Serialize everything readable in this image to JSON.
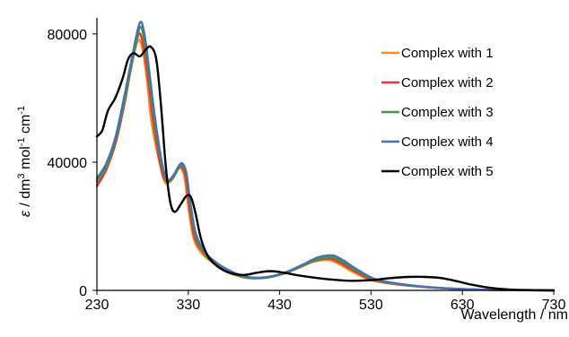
{
  "chart_data": {
    "type": "line",
    "xlabel": "Wavelength / nm",
    "ylabel_symbol": "ε",
    "ylabel_text": " / dm",
    "ylabel_sup1": "3",
    "ylabel_mid": " mol",
    "ylabel_sup2": "-1",
    "ylabel_end": " cm",
    "ylabel_sup3": "-1",
    "xlim": [
      230,
      730
    ],
    "ylim": [
      0,
      85000
    ],
    "x_ticks": [
      230,
      330,
      430,
      530,
      630,
      730
    ],
    "x_tick_labels": [
      "230",
      "330",
      "430",
      "530",
      "630",
      "730"
    ],
    "y_ticks": [
      0,
      40000,
      80000
    ],
    "y_tick_labels": [
      "0",
      "40000",
      "80000"
    ],
    "grid": false,
    "legend_position": "right",
    "series": [
      {
        "name": "Complex with 1",
        "color": "#f28c28",
        "points": [
          [
            230,
            33000
          ],
          [
            240,
            38000
          ],
          [
            250,
            46000
          ],
          [
            260,
            58000
          ],
          [
            268,
            70000
          ],
          [
            275,
            78000
          ],
          [
            280,
            75000
          ],
          [
            285,
            65000
          ],
          [
            290,
            52000
          ],
          [
            300,
            38000
          ],
          [
            305,
            33500
          ],
          [
            312,
            34500
          ],
          [
            318,
            37500
          ],
          [
            322,
            38000
          ],
          [
            326,
            35000
          ],
          [
            330,
            26000
          ],
          [
            336,
            16000
          ],
          [
            345,
            11500
          ],
          [
            355,
            9000
          ],
          [
            370,
            6000
          ],
          [
            390,
            4200
          ],
          [
            410,
            4000
          ],
          [
            430,
            5000
          ],
          [
            450,
            7000
          ],
          [
            465,
            8800
          ],
          [
            478,
            9500
          ],
          [
            485,
            9400
          ],
          [
            495,
            8200
          ],
          [
            510,
            5800
          ],
          [
            530,
            3200
          ],
          [
            560,
            1800
          ],
          [
            600,
            800
          ],
          [
            640,
            300
          ],
          [
            680,
            100
          ],
          [
            730,
            0
          ]
        ]
      },
      {
        "name": "Complex with 2",
        "color": "#e8372c",
        "points": [
          [
            230,
            32500
          ],
          [
            240,
            37500
          ],
          [
            250,
            45500
          ],
          [
            260,
            58000
          ],
          [
            268,
            71000
          ],
          [
            276,
            80000
          ],
          [
            281,
            76000
          ],
          [
            286,
            66000
          ],
          [
            292,
            52000
          ],
          [
            300,
            38500
          ],
          [
            306,
            34000
          ],
          [
            313,
            35000
          ],
          [
            319,
            38000
          ],
          [
            323,
            38500
          ],
          [
            327,
            35500
          ],
          [
            331,
            26500
          ],
          [
            337,
            16500
          ],
          [
            346,
            12000
          ],
          [
            356,
            9000
          ],
          [
            372,
            6000
          ],
          [
            392,
            4000
          ],
          [
            412,
            3900
          ],
          [
            432,
            5000
          ],
          [
            452,
            7200
          ],
          [
            468,
            9200
          ],
          [
            480,
            9900
          ],
          [
            487,
            9800
          ],
          [
            497,
            8500
          ],
          [
            512,
            6000
          ],
          [
            532,
            3300
          ],
          [
            562,
            1800
          ],
          [
            600,
            800
          ],
          [
            640,
            300
          ],
          [
            680,
            100
          ],
          [
            730,
            0
          ]
        ]
      },
      {
        "name": "Complex with 3",
        "color": "#3a9b3f",
        "points": [
          [
            230,
            34000
          ],
          [
            240,
            38500
          ],
          [
            250,
            46500
          ],
          [
            260,
            59000
          ],
          [
            269,
            72000
          ],
          [
            277,
            82000
          ],
          [
            282,
            78000
          ],
          [
            287,
            67000
          ],
          [
            293,
            53000
          ],
          [
            301,
            39000
          ],
          [
            307,
            34000
          ],
          [
            314,
            35500
          ],
          [
            320,
            38500
          ],
          [
            324,
            39000
          ],
          [
            328,
            36000
          ],
          [
            332,
            27000
          ],
          [
            338,
            17000
          ],
          [
            347,
            12000
          ],
          [
            357,
            9200
          ],
          [
            374,
            6000
          ],
          [
            394,
            4000
          ],
          [
            414,
            3900
          ],
          [
            434,
            5200
          ],
          [
            454,
            7600
          ],
          [
            470,
            9600
          ],
          [
            482,
            10300
          ],
          [
            489,
            10200
          ],
          [
            499,
            8800
          ],
          [
            514,
            6200
          ],
          [
            534,
            3400
          ],
          [
            564,
            1800
          ],
          [
            602,
            800
          ],
          [
            642,
            300
          ],
          [
            682,
            100
          ],
          [
            730,
            0
          ]
        ]
      },
      {
        "name": "Complex with 4",
        "color": "#4a6fb5",
        "points": [
          [
            230,
            35000
          ],
          [
            240,
            39500
          ],
          [
            250,
            47500
          ],
          [
            260,
            60500
          ],
          [
            269,
            73500
          ],
          [
            277,
            83500
          ],
          [
            282,
            80000
          ],
          [
            287,
            69000
          ],
          [
            293,
            55000
          ],
          [
            301,
            40000
          ],
          [
            307,
            34500
          ],
          [
            314,
            36000
          ],
          [
            320,
            39000
          ],
          [
            324,
            39500
          ],
          [
            328,
            36500
          ],
          [
            332,
            28000
          ],
          [
            338,
            18000
          ],
          [
            347,
            12500
          ],
          [
            357,
            9500
          ],
          [
            375,
            6200
          ],
          [
            395,
            4200
          ],
          [
            415,
            4100
          ],
          [
            435,
            5500
          ],
          [
            455,
            8000
          ],
          [
            471,
            10200
          ],
          [
            483,
            10900
          ],
          [
            490,
            10800
          ],
          [
            500,
            9300
          ],
          [
            515,
            6500
          ],
          [
            535,
            3500
          ],
          [
            565,
            1900
          ],
          [
            603,
            800
          ],
          [
            643,
            300
          ],
          [
            683,
            100
          ],
          [
            730,
            0
          ]
        ]
      },
      {
        "name": "Complex with 5",
        "color": "#000000",
        "points": [
          [
            230,
            48000
          ],
          [
            236,
            50000
          ],
          [
            242,
            56000
          ],
          [
            250,
            60000
          ],
          [
            258,
            66000
          ],
          [
            264,
            72000
          ],
          [
            270,
            74000
          ],
          [
            277,
            73000
          ],
          [
            283,
            75000
          ],
          [
            289,
            76000
          ],
          [
            295,
            72000
          ],
          [
            300,
            58000
          ],
          [
            305,
            40000
          ],
          [
            310,
            28000
          ],
          [
            315,
            24500
          ],
          [
            322,
            27000
          ],
          [
            328,
            29500
          ],
          [
            333,
            29000
          ],
          [
            338,
            24000
          ],
          [
            344,
            16000
          ],
          [
            352,
            10500
          ],
          [
            362,
            7500
          ],
          [
            375,
            5500
          ],
          [
            390,
            4800
          ],
          [
            405,
            5500
          ],
          [
            420,
            6000
          ],
          [
            435,
            5500
          ],
          [
            450,
            4700
          ],
          [
            470,
            3900
          ],
          [
            490,
            3300
          ],
          [
            510,
            3000
          ],
          [
            530,
            3200
          ],
          [
            550,
            3800
          ],
          [
            570,
            4200
          ],
          [
            590,
            4200
          ],
          [
            608,
            3800
          ],
          [
            625,
            2800
          ],
          [
            640,
            1800
          ],
          [
            660,
            800
          ],
          [
            680,
            300
          ],
          [
            700,
            100
          ],
          [
            730,
            0
          ]
        ]
      }
    ]
  }
}
